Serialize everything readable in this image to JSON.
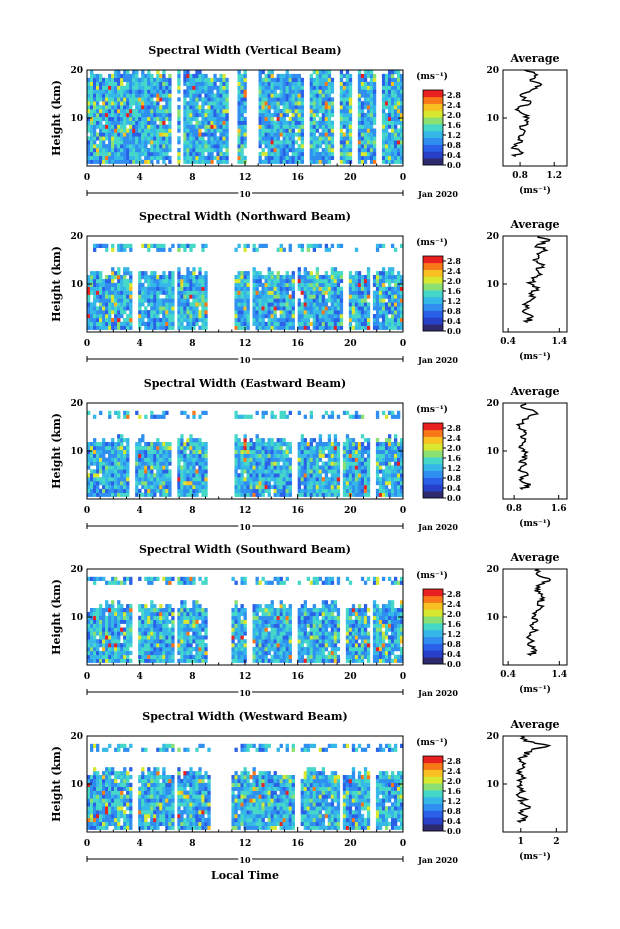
{
  "figure": {
    "y_axis_label": "Height (km)",
    "x_axis_label": "Local Time",
    "date_label": "Jan 2020",
    "date_mark": "10",
    "cbar_unit": "(ms⁻¹)",
    "avg_title": "Average",
    "avg_xlabel": "(ms⁻¹)"
  },
  "colors": {
    "scale": [
      "#2e2a6e",
      "#2840c8",
      "#2a60e8",
      "#2f8ef0",
      "#35b8e8",
      "#45d8c8",
      "#8ae070",
      "#d8e830",
      "#f8c020",
      "#f87818",
      "#e82020"
    ]
  },
  "chart_data": [
    {
      "type": "heatmap",
      "title": "Spectral Width (Vertical Beam)",
      "xlabel": "",
      "ylabel": "Height (km)",
      "x_ticks": [
        "0",
        "4",
        "8",
        "12",
        "16",
        "20",
        "0"
      ],
      "xlim": [
        0,
        24
      ],
      "y_ticks": [
        "10",
        "20"
      ],
      "ylim": [
        0,
        20
      ],
      "colorbar": {
        "unit": "(ms⁻¹)",
        "ticks": [
          "0.0",
          "0.4",
          "0.8",
          "1.2",
          "1.6",
          "2.0",
          "2.4",
          "2.8"
        ],
        "range": [
          0.0,
          3.0
        ]
      },
      "gaps_hours": [
        [
          6.4,
          6.8
        ],
        [
          7.0,
          7.3
        ],
        [
          10.8,
          11.5
        ],
        [
          12.2,
          13.1
        ],
        [
          16.5,
          16.9
        ],
        [
          18.8,
          19.2
        ],
        [
          20.2,
          20.6
        ],
        [
          21.9,
          22.3
        ]
      ],
      "profile": {
        "title": "Average",
        "x_ticks": [
          "0.8",
          "1.2"
        ],
        "xlim": [
          0.6,
          1.35
        ],
        "y_ticks": [
          "10",
          "20"
        ],
        "heights": [
          2,
          3,
          4,
          5,
          6,
          7,
          8,
          9,
          10,
          11,
          12,
          13,
          14,
          15,
          16,
          17,
          18,
          19,
          20
        ],
        "values": [
          0.75,
          0.8,
          0.72,
          0.82,
          0.78,
          0.85,
          0.8,
          0.88,
          0.9,
          0.82,
          0.78,
          0.92,
          0.85,
          0.82,
          0.95,
          1.05,
          0.92,
          1.0,
          0.85
        ]
      }
    },
    {
      "type": "heatmap",
      "title": "Spectral Width (Northward Beam)",
      "xlabel": "",
      "ylabel": "Height (km)",
      "x_ticks": [
        "0",
        "4",
        "8",
        "12",
        "16",
        "20",
        "0"
      ],
      "xlim": [
        0,
        24
      ],
      "y_ticks": [
        "10",
        "20"
      ],
      "ylim": [
        0,
        20
      ],
      "colorbar": {
        "unit": "(ms⁻¹)",
        "ticks": [
          "0.0",
          "0.4",
          "0.8",
          "1.2",
          "1.6",
          "2.0",
          "2.4",
          "2.8"
        ],
        "range": [
          0.0,
          3.0
        ]
      },
      "gaps_hours": [
        [
          3.4,
          3.8
        ],
        [
          6.6,
          6.9
        ],
        [
          9.1,
          11.2
        ],
        [
          12.3,
          12.6
        ],
        [
          15.7,
          16.1
        ],
        [
          19.5,
          19.9
        ],
        [
          21.4,
          21.8
        ]
      ],
      "profile": {
        "title": "Average",
        "x_ticks": [
          "0.4",
          "1.4"
        ],
        "xlim": [
          0.3,
          1.55
        ],
        "y_ticks": [
          "10",
          "20"
        ],
        "heights": [
          2,
          3,
          4,
          5,
          6,
          7,
          8,
          9,
          10,
          11,
          12,
          13,
          14,
          15,
          16,
          17,
          18,
          19,
          20
        ],
        "values": [
          0.78,
          0.85,
          0.72,
          0.8,
          0.75,
          0.9,
          0.82,
          0.95,
          0.85,
          0.9,
          1.05,
          0.95,
          1.1,
          0.88,
          1.0,
          1.15,
          0.95,
          1.2,
          1.0
        ]
      }
    },
    {
      "type": "heatmap",
      "title": "Spectral Width (Eastward Beam)",
      "xlabel": "",
      "ylabel": "Height (km)",
      "x_ticks": [
        "0",
        "4",
        "8",
        "12",
        "16",
        "20",
        "0"
      ],
      "xlim": [
        0,
        24
      ],
      "y_ticks": [
        "10",
        "20"
      ],
      "ylim": [
        0,
        20
      ],
      "colorbar": {
        "unit": "(ms⁻¹)",
        "ticks": [
          "0.0",
          "0.4",
          "0.8",
          "1.2",
          "1.6",
          "2.0",
          "2.4",
          "2.8"
        ],
        "range": [
          0.0,
          3.0
        ]
      },
      "gaps_hours": [
        [
          3.3,
          3.6
        ],
        [
          6.5,
          6.8
        ],
        [
          9.2,
          11.3
        ],
        [
          15.6,
          16.0
        ],
        [
          19.2,
          19.5
        ],
        [
          21.6,
          21.9
        ]
      ],
      "profile": {
        "title": "Average",
        "x_ticks": [
          "0.8",
          "1.6"
        ],
        "xlim": [
          0.6,
          1.75
        ],
        "y_ticks": [
          "10",
          "20"
        ],
        "heights": [
          2,
          3,
          4,
          5,
          6,
          7,
          8,
          9,
          10,
          11,
          12,
          13,
          14,
          15,
          16,
          17,
          18,
          19,
          20
        ],
        "values": [
          0.95,
          1.1,
          0.9,
          1.05,
          0.88,
          0.98,
          0.92,
          1.02,
          0.95,
          0.9,
          1.0,
          0.92,
          0.98,
          0.9,
          0.95,
          1.05,
          1.2,
          0.95,
          1.0
        ]
      }
    },
    {
      "type": "heatmap",
      "title": "Spectral Width (Southward Beam)",
      "xlabel": "",
      "ylabel": "Height (km)",
      "x_ticks": [
        "0",
        "4",
        "8",
        "12",
        "16",
        "20",
        "0"
      ],
      "xlim": [
        0,
        24
      ],
      "y_ticks": [
        "10",
        "20"
      ],
      "ylim": [
        0,
        20
      ],
      "colorbar": {
        "unit": "(ms⁻¹)",
        "ticks": [
          "0.0",
          "0.4",
          "0.8",
          "1.2",
          "1.6",
          "2.0",
          "2.4",
          "2.8"
        ],
        "range": [
          0.0,
          3.0
        ]
      },
      "gaps_hours": [
        [
          3.4,
          3.8
        ],
        [
          6.6,
          6.9
        ],
        [
          9.2,
          11.0
        ],
        [
          12.2,
          12.5
        ],
        [
          15.6,
          16.0
        ],
        [
          19.3,
          19.6
        ],
        [
          21.5,
          21.8
        ]
      ],
      "profile": {
        "title": "Average",
        "x_ticks": [
          "0.4",
          "1.4"
        ],
        "xlim": [
          0.3,
          1.55
        ],
        "y_ticks": [
          "10",
          "20"
        ],
        "heights": [
          2,
          3,
          4,
          5,
          6,
          7,
          8,
          9,
          10,
          11,
          12,
          13,
          14,
          15,
          16,
          17,
          18,
          19,
          20
        ],
        "values": [
          0.85,
          0.95,
          0.82,
          0.9,
          0.8,
          0.92,
          0.85,
          0.95,
          0.88,
          0.95,
          1.05,
          0.98,
          1.1,
          1.0,
          0.95,
          1.1,
          1.2,
          0.95,
          1.0
        ]
      }
    },
    {
      "type": "heatmap",
      "title": "Spectral Width (Westward Beam)",
      "xlabel": "Local Time",
      "ylabel": "Height (km)",
      "x_ticks": [
        "0",
        "4",
        "8",
        "12",
        "16",
        "20",
        "0"
      ],
      "xlim": [
        0,
        24
      ],
      "y_ticks": [
        "10",
        "20"
      ],
      "ylim": [
        0,
        20
      ],
      "colorbar": {
        "unit": "(ms⁻¹)",
        "ticks": [
          "0.0",
          "0.4",
          "0.8",
          "1.2",
          "1.6",
          "2.0",
          "2.4",
          "2.8"
        ],
        "range": [
          0.0,
          3.0
        ]
      },
      "gaps_hours": [
        [
          3.4,
          3.8
        ],
        [
          6.6,
          6.9
        ],
        [
          9.3,
          11.0
        ],
        [
          15.8,
          16.2
        ],
        [
          19.2,
          19.5
        ],
        [
          21.6,
          21.9
        ]
      ],
      "profile": {
        "title": "Average",
        "x_ticks": [
          "1",
          "2"
        ],
        "xlim": [
          0.5,
          2.3
        ],
        "y_ticks": [
          "10",
          "20"
        ],
        "heights": [
          2,
          3,
          4,
          5,
          6,
          7,
          8,
          9,
          10,
          11,
          12,
          13,
          14,
          15,
          16,
          17,
          18,
          19,
          20
        ],
        "values": [
          1.0,
          1.15,
          0.95,
          1.25,
          1.0,
          1.1,
          0.95,
          1.05,
          0.98,
          1.02,
          1.0,
          0.95,
          1.05,
          1.0,
          1.1,
          1.3,
          1.8,
          1.1,
          1.0
        ]
      }
    }
  ]
}
